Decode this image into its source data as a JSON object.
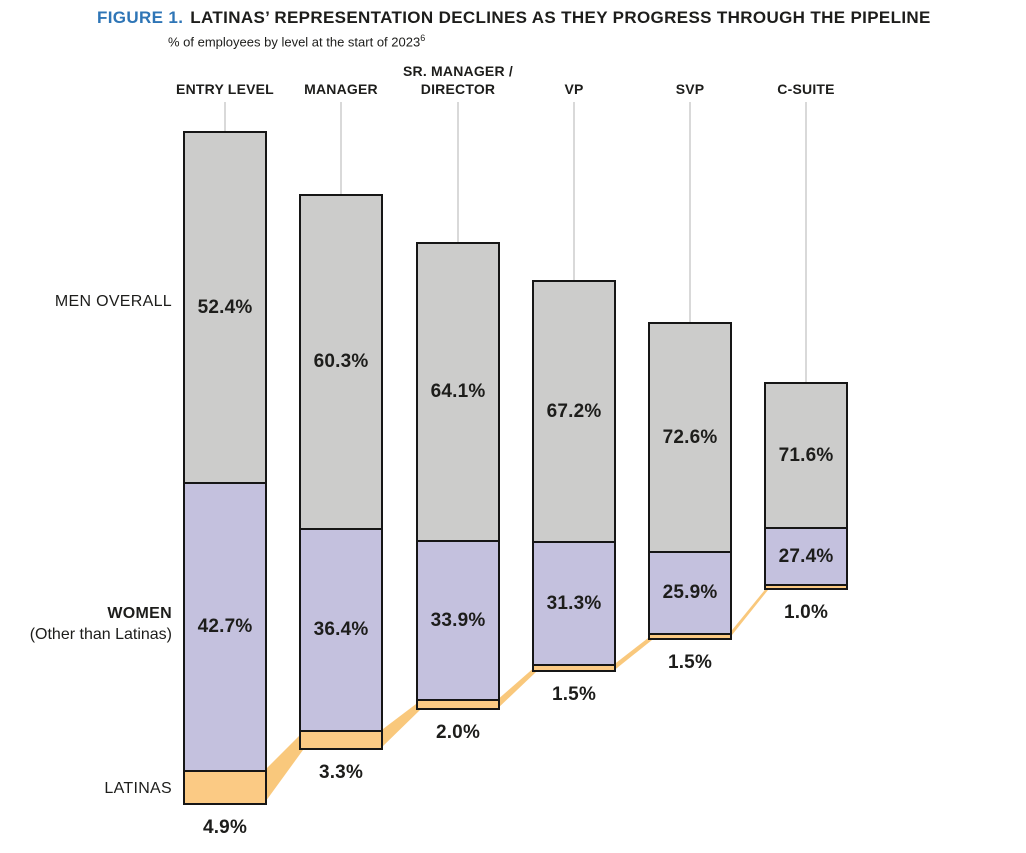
{
  "figure": {
    "label": "FIGURE 1.",
    "title": "LATINAS’ REPRESENTATION DECLINES AS THEY PROGRESS THROUGH THE PIPELINE",
    "subtitle": "% of employees by level at the start of 2023",
    "subtitle_superscript": "6"
  },
  "row_labels": {
    "men": "MEN OVERALL",
    "women_line1": "WOMEN",
    "women_line2": "(Other than Latinas)",
    "latinas": "LATINAS"
  },
  "colors": {
    "figure_label_blue": "#2e75b6",
    "men_gray": "#cccccb",
    "women_purple": "#c4c1de",
    "latinas_orange": "#fbca84",
    "ribbon_orange": "#f9c87c",
    "bar_border": "#161616",
    "leader_line": "#d9d9d9",
    "text_dark": "#1d1d1b"
  },
  "chart_data": {
    "type": "bar",
    "subtype": "stacked-pipeline-funnel",
    "title": "FIGURE 1. LATINAS’ REPRESENTATION DECLINES AS THEY PROGRESS THROUGH THE PIPELINE",
    "subtitle": "% of employees by level at the start of 2023⁶",
    "unit": "%",
    "categories": [
      "ENTRY LEVEL",
      "MANAGER",
      "SR. MANAGER / DIRECTOR",
      "VP",
      "SVP",
      "C-SUITE"
    ],
    "series": [
      {
        "name": "MEN OVERALL",
        "color": "#cccccb",
        "values": [
          52.4,
          60.3,
          64.1,
          67.2,
          72.6,
          71.6
        ]
      },
      {
        "name": "WOMEN (Other than Latinas)",
        "color": "#c4c1de",
        "values": [
          42.7,
          36.4,
          33.9,
          31.3,
          25.9,
          27.4
        ]
      },
      {
        "name": "LATINAS",
        "color": "#fbca84",
        "values": [
          4.9,
          3.3,
          2.0,
          1.5,
          1.5,
          1.0
        ]
      }
    ],
    "value_label_format": "one decimal + %",
    "value_label_placement": "men and women inside segments; Latinas below each bar",
    "legend_position": "left row labels",
    "layout_note": "total bar height shrinks at each successive level; Latinas segments joined by orange ribbons between bars",
    "grid": false
  }
}
